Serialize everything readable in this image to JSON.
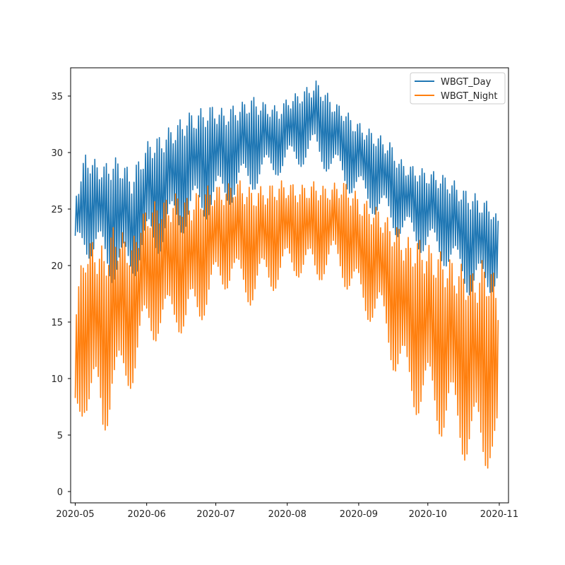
{
  "chart_data": {
    "type": "line",
    "title": "",
    "xlabel": "",
    "ylabel": "",
    "x_range": [
      "2020-04-29",
      "2020-11-05"
    ],
    "x_ticks": [
      "2020-05",
      "2020-06",
      "2020-07",
      "2020-08",
      "2020-09",
      "2020-10",
      "2020-11"
    ],
    "ylim": [
      -1,
      37.5
    ],
    "y_ticks": [
      0,
      5,
      10,
      15,
      20,
      25,
      30,
      35
    ],
    "grid": false,
    "legend_position": "top-right",
    "x": [
      "2020-05-01",
      "2020-05-05",
      "2020-05-09",
      "2020-05-13",
      "2020-05-17",
      "2020-05-21",
      "2020-05-25",
      "2020-05-29",
      "2020-06-02",
      "2020-06-06",
      "2020-06-10",
      "2020-06-14",
      "2020-06-18",
      "2020-06-22",
      "2020-06-26",
      "2020-06-30",
      "2020-07-04",
      "2020-07-08",
      "2020-07-12",
      "2020-07-16",
      "2020-07-20",
      "2020-07-24",
      "2020-07-28",
      "2020-08-01",
      "2020-08-05",
      "2020-08-09",
      "2020-08-13",
      "2020-08-17",
      "2020-08-21",
      "2020-08-25",
      "2020-08-29",
      "2020-09-02",
      "2020-09-06",
      "2020-09-10",
      "2020-09-14",
      "2020-09-18",
      "2020-09-22",
      "2020-09-26",
      "2020-09-30",
      "2020-10-04",
      "2020-10-08",
      "2020-10-12",
      "2020-10-16",
      "2020-10-20",
      "2020-10-24",
      "2020-10-28",
      "2020-10-31"
    ],
    "series": [
      {
        "name": "WBGT_Day",
        "color": "#1f77b4",
        "low": [
          20.5,
          21.2,
          20.0,
          19.8,
          18.5,
          18.0,
          18.7,
          19.5,
          20.5,
          21.0,
          21.8,
          22.5,
          23.0,
          23.5,
          24.0,
          24.5,
          25.0,
          25.5,
          26.0,
          26.5,
          27.0,
          27.5,
          28.0,
          28.2,
          28.5,
          29.0,
          29.2,
          28.5,
          27.8,
          27.0,
          26.2,
          25.5,
          24.8,
          24.0,
          23.2,
          22.5,
          22.0,
          21.5,
          20.8,
          20.5,
          20.0,
          19.0,
          18.2,
          17.0,
          17.2,
          17.5,
          18.0
        ],
        "high": [
          26.7,
          30.0,
          29.4,
          29.0,
          29.6,
          29.5,
          28.0,
          30.0,
          31.3,
          31.5,
          32.2,
          32.8,
          33.5,
          33.8,
          34.0,
          34.3,
          33.8,
          34.2,
          34.5,
          35.0,
          34.6,
          34.3,
          34.0,
          35.0,
          35.3,
          35.8,
          36.4,
          35.5,
          34.5,
          34.0,
          33.0,
          32.5,
          32.0,
          31.5,
          31.0,
          29.5,
          29.0,
          28.7,
          28.5,
          28.3,
          28.0,
          27.5,
          26.8,
          26.5,
          26.0,
          25.5,
          24.2
        ]
      },
      {
        "name": "WBGT_Night",
        "color": "#ff7f0e",
        "low": [
          4.0,
          7.0,
          5.6,
          3.4,
          8.2,
          6.5,
          9.0,
          11.2,
          12.8,
          13.5,
          12.8,
          14.5,
          13.0,
          14.0,
          15.5,
          16.5,
          17.5,
          18.5,
          16.2,
          16.5,
          17.2,
          17.5,
          18.0,
          18.5,
          19.0,
          18.8,
          18.0,
          19.0,
          19.5,
          18.5,
          17.0,
          15.5,
          15.0,
          14.0,
          12.0,
          9.5,
          7.0,
          6.8,
          6.0,
          5.5,
          4.5,
          4.0,
          3.0,
          2.0,
          0.8,
          2.5,
          1.4
        ],
        "high": [
          18.0,
          22.0,
          22.5,
          21.5,
          23.5,
          23.0,
          22.0,
          24.5,
          25.5,
          25.8,
          26.0,
          26.5,
          26.0,
          26.5,
          27.0,
          27.2,
          27.0,
          27.5,
          27.6,
          26.8,
          27.0,
          27.2,
          27.5,
          27.5,
          27.0,
          27.3,
          27.5,
          27.0,
          27.3,
          27.5,
          26.8,
          26.0,
          25.5,
          25.0,
          24.0,
          23.5,
          22.5,
          22.5,
          22.0,
          21.5,
          21.0,
          20.5,
          20.0,
          19.5,
          20.5,
          20.0,
          18.2
        ]
      }
    ]
  }
}
